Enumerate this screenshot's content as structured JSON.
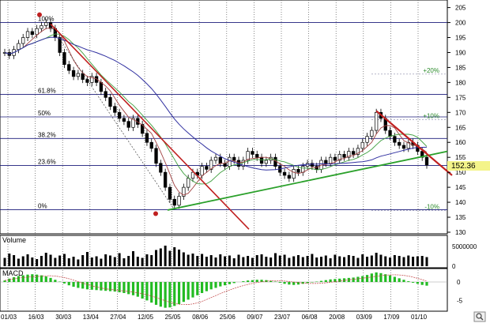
{
  "chart_data": [
    {
      "panel": "price",
      "type": "candlestick",
      "ylim": [
        130,
        207
      ],
      "yticks": [
        "205",
        "200",
        "195",
        "190",
        "185",
        "180",
        "175",
        "170",
        "165",
        "160",
        "155",
        "150",
        "145",
        "140",
        "135",
        "130"
      ],
      "last_price_label": "152.36",
      "fibonacci_levels": [
        {
          "label": "100%",
          "value": 200
        },
        {
          "label": "61.8%",
          "value": 176
        },
        {
          "label": "50%",
          "value": 168.5
        },
        {
          "label": "38.2%",
          "value": 161.3
        },
        {
          "label": "23.6%",
          "value": 152.3
        },
        {
          "label": "0%",
          "value": 137.5
        }
      ],
      "percent_markers": [
        {
          "label": "+20%",
          "value": 182.8
        },
        {
          "label": "+10%",
          "value": 167.6
        },
        {
          "label": "-10%",
          "value": 137.3
        }
      ],
      "price_series": [
        190,
        189,
        191,
        193,
        195,
        197,
        196,
        198,
        199,
        200,
        198,
        195,
        190,
        186,
        184,
        182,
        183,
        181,
        180,
        182,
        180,
        177,
        175,
        172,
        170,
        168,
        167,
        165,
        168,
        166,
        163,
        160,
        158,
        153,
        150,
        145,
        141,
        139,
        142,
        145,
        148,
        150,
        149,
        152,
        151,
        154,
        155,
        153,
        152,
        155,
        154,
        152,
        154,
        157,
        156,
        155,
        153,
        154,
        155,
        152,
        150,
        149,
        148,
        151,
        150,
        152,
        153,
        152,
        151,
        154,
        153,
        155,
        154,
        156,
        155,
        157,
        156,
        158,
        160,
        162,
        164,
        170,
        168,
        164,
        162,
        160,
        159,
        158,
        160,
        159,
        157,
        155,
        152.4
      ],
      "x_range": [
        "01/03",
        "08/10"
      ],
      "xticks": [
        "01/03",
        "16/03",
        "30/03",
        "13/04",
        "27/04",
        "12/05",
        "25/05",
        "08/06",
        "25/06",
        "09/07",
        "23/07",
        "06/08",
        "20/08",
        "03/09",
        "17/09",
        "01/10"
      ]
    },
    {
      "panel": "volume",
      "type": "bar",
      "title": "Volume",
      "yticks": [
        "5000000",
        "0"
      ],
      "ylim": [
        0,
        7000000
      ],
      "values": [
        2100000.0,
        3200000.0,
        2800000.0,
        1900000.0,
        2500000.0,
        3000000.0,
        2200000.0,
        1800000.0,
        2600000.0,
        3400000.0,
        2900000.0,
        2100000.0,
        2700000.0,
        3100000.0,
        2000000.0,
        2400000.0,
        1700000.0,
        2800000.0,
        3600000.0,
        2200000.0,
        2500000.0,
        1900000.0,
        3000000.0,
        2700000.0,
        2300000.0,
        3300000.0,
        2000000.0,
        2600000.0,
        3800000.0,
        2400000.0,
        2100000.0,
        3000000.0,
        2800000.0,
        4100000.0,
        4500000.0,
        5200000.0,
        3900000.0,
        4800000.0,
        4200000.0,
        3500000.0,
        2900000.0,
        3200000.0,
        2600000.0,
        3100000.0,
        2400000.0,
        2800000.0,
        2200000.0,
        3000000.0,
        2500000.0,
        2700000.0,
        2000000.0,
        2900000.0,
        2300000.0,
        2600000.0,
        2100000.0,
        2800000.0,
        3000000.0,
        2400000.0,
        2200000.0,
        3300000.0,
        2700000.0,
        2900000.0,
        2100000.0,
        2500000.0,
        2800000.0,
        2300000.0,
        2600000.0,
        3100000.0,
        2200000.0,
        2400000.0,
        2700000.0,
        2000000.0,
        2900000.0,
        2500000.0,
        2300000.0,
        2800000.0,
        2600000.0,
        2100000.0,
        3000000.0,
        2400000.0,
        2700000.0,
        3400000.0,
        2900000.0,
        2500000.0,
        2200000.0,
        2800000.0,
        2600000.0,
        2300000.0,
        2700000.0,
        2400000.0,
        2500000.0,
        2600000.0,
        2300000.0
      ]
    },
    {
      "panel": "macd",
      "type": "bar",
      "title": "MACD",
      "yticks": [
        "0",
        "-5"
      ],
      "ylim": [
        -7.5,
        3
      ],
      "values": [
        0.4,
        0.9,
        1.3,
        1.6,
        1.8,
        2.0,
        2.1,
        2.0,
        1.8,
        1.5,
        1.1,
        0.6,
        0.1,
        -0.4,
        -0.9,
        -1.3,
        -1.6,
        -1.8,
        -2.0,
        -2.1,
        -2.2,
        -2.3,
        -2.4,
        -2.5,
        -2.6,
        -2.8,
        -3.0,
        -3.3,
        -3.6,
        -4.0,
        -4.5,
        -5.0,
        -5.6,
        -6.2,
        -6.7,
        -7.0,
        -6.9,
        -6.5,
        -6.0,
        -5.4,
        -4.8,
        -4.2,
        -3.6,
        -3.0,
        -2.5,
        -2.0,
        -1.6,
        -1.2,
        -0.9,
        -0.6,
        -0.3,
        0.0,
        0.2,
        0.4,
        0.5,
        0.6,
        0.6,
        0.5,
        0.3,
        0.1,
        -0.2,
        -0.5,
        -0.7,
        -0.8,
        -0.7,
        -0.5,
        -0.3,
        -0.1,
        0.1,
        0.3,
        0.5,
        0.7,
        0.8,
        0.9,
        1.0,
        1.1,
        1.2,
        1.4,
        1.6,
        1.9,
        2.3,
        2.6,
        2.4,
        2.1,
        1.8,
        1.4,
        1.0,
        0.6,
        0.2,
        -0.2,
        -0.5,
        -0.8,
        -1.0
      ]
    }
  ]
}
